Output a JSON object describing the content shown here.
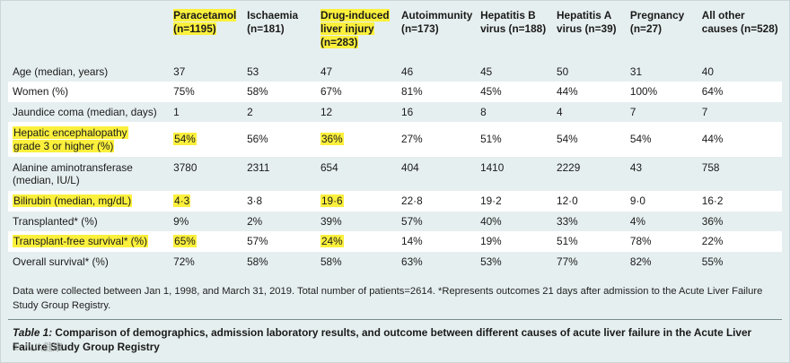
{
  "table": {
    "columns": [
      {
        "line1": "Paracetamol",
        "line2": "(n=1195)",
        "line3": "",
        "highlight": true
      },
      {
        "line1": "Ischaemia",
        "line2": "(n=181)",
        "line3": "",
        "highlight": false
      },
      {
        "line1": "Drug-induced",
        "line2": "liver injury",
        "line3": "(n=283)",
        "highlight": true
      },
      {
        "line1": "Autoimmunity",
        "line2": "(n=173)",
        "line3": "",
        "highlight": false
      },
      {
        "line1": "Hepatitis B",
        "line2": "virus (n=188)",
        "line3": "",
        "highlight": false
      },
      {
        "line1": "Hepatitis A",
        "line2": "virus (n=39)",
        "line3": "",
        "highlight": false
      },
      {
        "line1": "Pregnancy",
        "line2": "(n=27)",
        "line3": "",
        "highlight": false
      },
      {
        "line1": "All other",
        "line2": "causes (n=528)",
        "line3": "",
        "highlight": false
      }
    ],
    "rows": [
      {
        "label": "Age (median, years)",
        "label2": "",
        "values": [
          "37",
          "53",
          "47",
          "46",
          "45",
          "50",
          "31",
          "40"
        ]
      },
      {
        "label": "Women (%)",
        "label2": "",
        "values": [
          "75%",
          "58%",
          "67%",
          "81%",
          "45%",
          "44%",
          "100%",
          "64%"
        ]
      },
      {
        "label": "Jaundice coma (median, days)",
        "label2": "",
        "values": [
          "1",
          "2",
          "12",
          "16",
          "8",
          "4",
          "7",
          "7"
        ]
      },
      {
        "label": "Hepatic encephalopathy",
        "label2": "grade 3 or higher (%)",
        "values": [
          "54%",
          "56%",
          "36%",
          "27%",
          "51%",
          "54%",
          "54%",
          "44%"
        ]
      },
      {
        "label": "Alanine aminotransferase",
        "label2": "(median, IU/L)",
        "values": [
          "3780",
          "2311",
          "654",
          "404",
          "1410",
          "2229",
          "43",
          "758"
        ]
      },
      {
        "label": "Bilirubin (median, mg/dL)",
        "label2": "",
        "values": [
          "4·3",
          "3·8",
          "19·6",
          "22·8",
          "19·2",
          "12·0",
          "9·0",
          "16·2"
        ]
      },
      {
        "label": "Transplanted* (%)",
        "label2": "",
        "values": [
          "9%",
          "2%",
          "39%",
          "57%",
          "40%",
          "33%",
          "4%",
          "36%"
        ]
      },
      {
        "label": "Transplant-free survival* (%)",
        "label2": "",
        "values": [
          "65%",
          "57%",
          "24%",
          "14%",
          "19%",
          "51%",
          "78%",
          "22%"
        ]
      },
      {
        "label": "Overall survival* (%)",
        "label2": "",
        "values": [
          "72%",
          "58%",
          "58%",
          "63%",
          "53%",
          "77%",
          "82%",
          "55%"
        ]
      }
    ]
  },
  "footnote": "Data were collected between Jan 1, 1998, and March 31, 2019. Total number of patients=2614. *Represents outcomes 21 days after admission to the Acute Liver Failure Study Group Registry.",
  "caption": {
    "label": "Table 1:",
    "text": " Comparison of demographics, admission laboratory results, and outcome between different causes of acute liver failure in the Acute Liver Failure Study Group Registry"
  },
  "watermark": "① 八八健康"
}
